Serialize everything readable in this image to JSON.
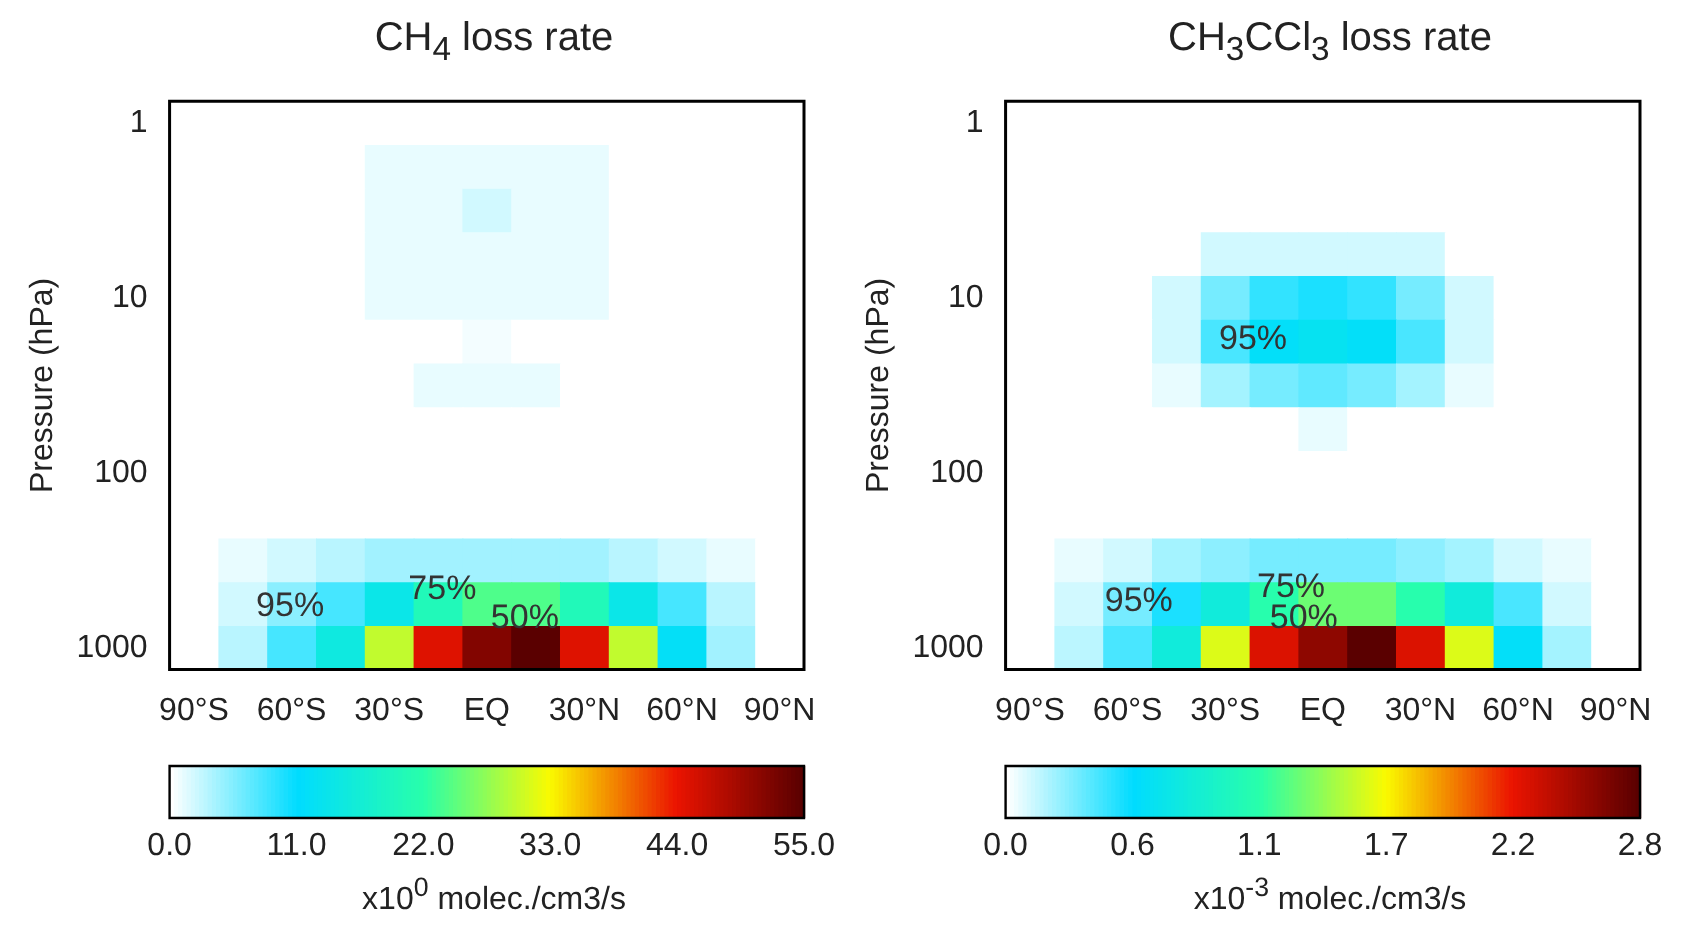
{
  "chart_data": [
    {
      "type": "heatmap",
      "title": "CH$_{4}$ loss rate",
      "ylabel": "Pressure (hPa)",
      "clabel": "x10$^{0}$  molec./cm3/s",
      "categories": [
        "90°S",
        null,
        "60°S",
        null,
        "30°S",
        null,
        "EQ",
        null,
        "30°N",
        null,
        "60°N",
        null,
        "90°N"
      ],
      "y_categories": [
        "1",
        null,
        null,
        null,
        "10",
        null,
        null,
        null,
        "100",
        null,
        null,
        null,
        "1000"
      ],
      "cells": [
        [
          0,
          0,
          0,
          0,
          0,
          0,
          0,
          0,
          0,
          0,
          0,
          0,
          0
        ],
        [
          0,
          0,
          0,
          0,
          1,
          1,
          1,
          1,
          1,
          0,
          0,
          0,
          0
        ],
        [
          0,
          0,
          0,
          0,
          1,
          1,
          2,
          1,
          1,
          0,
          0,
          0,
          0
        ],
        [
          0,
          0,
          0,
          0,
          1,
          1,
          1,
          1,
          1,
          0,
          0,
          0,
          0
        ],
        [
          0,
          0,
          0,
          0,
          1,
          1,
          1,
          1,
          1,
          0,
          0,
          0,
          0
        ],
        [
          0,
          0,
          0,
          0,
          0,
          0,
          0.5,
          0,
          0,
          0,
          0,
          0,
          0
        ],
        [
          0,
          0,
          0,
          0,
          0,
          1,
          1,
          1,
          0,
          0,
          0,
          0,
          0
        ],
        [
          0,
          0,
          0,
          0,
          0,
          0,
          0,
          0,
          0,
          0,
          0,
          0,
          0
        ],
        [
          0,
          0,
          0,
          0,
          0,
          0,
          0,
          0,
          0,
          0,
          0,
          0,
          0
        ],
        [
          0,
          0,
          0,
          0,
          0,
          0,
          0,
          0,
          0,
          0,
          0,
          0,
          0
        ],
        [
          0,
          1,
          2,
          3,
          4,
          4,
          4,
          4,
          4,
          3,
          2,
          1,
          0
        ],
        [
          0,
          2,
          5,
          8,
          14,
          20,
          24,
          24,
          20,
          14,
          8,
          3,
          0
        ],
        [
          0,
          3,
          8,
          15,
          30,
          45,
          52,
          55,
          45,
          30,
          12,
          4,
          0
        ]
      ],
      "clim": [
        0,
        55
      ],
      "cticks": [
        {
          "value": 0,
          "label": "0.0"
        },
        {
          "value": 11,
          "label": "11.0"
        },
        {
          "value": 22,
          "label": "22.0"
        },
        {
          "value": 33,
          "label": "33.0"
        },
        {
          "value": 44,
          "label": "44.0"
        },
        {
          "value": 55,
          "label": "55.0"
        }
      ],
      "annotations": [
        "95%",
        "75%",
        "50%"
      ]
    },
    {
      "type": "heatmap",
      "title": "CH$_{3}$CCl$_{3}$ loss rate",
      "ylabel": "Pressure (hPa)",
      "clabel": "x10$^{-3}$  molec./cm3/s",
      "categories": [
        "90°S",
        null,
        "60°S",
        null,
        "30°S",
        null,
        "EQ",
        null,
        "30°N",
        null,
        "60°N",
        null,
        "90°N"
      ],
      "y_categories": [
        "1",
        null,
        null,
        null,
        "10",
        null,
        null,
        null,
        "100",
        null,
        null,
        null,
        "1000"
      ],
      "cells": [
        [
          0,
          0,
          0,
          0,
          0,
          0,
          0,
          0,
          0,
          0,
          0,
          0,
          0
        ],
        [
          0,
          0,
          0,
          0,
          0,
          0,
          0,
          0,
          0,
          0,
          0,
          0,
          0
        ],
        [
          0,
          0,
          0,
          0,
          0,
          0,
          0,
          0,
          0,
          0,
          0,
          0,
          0
        ],
        [
          0,
          0,
          0,
          0,
          0.1,
          0.1,
          0.1,
          0.1,
          0.1,
          0,
          0,
          0,
          0
        ],
        [
          0,
          0,
          0,
          0.1,
          0.3,
          0.45,
          0.5,
          0.45,
          0.3,
          0.1,
          0,
          0,
          0
        ],
        [
          0,
          0,
          0,
          0.1,
          0.4,
          0.6,
          0.65,
          0.6,
          0.4,
          0.1,
          0,
          0,
          0
        ],
        [
          0,
          0,
          0,
          0.05,
          0.2,
          0.3,
          0.35,
          0.3,
          0.2,
          0.05,
          0,
          0,
          0
        ],
        [
          0,
          0,
          0,
          0,
          0,
          0,
          0.05,
          0,
          0,
          0,
          0,
          0,
          0
        ],
        [
          0,
          0,
          0,
          0,
          0,
          0,
          0,
          0,
          0,
          0,
          0,
          0,
          0
        ],
        [
          0,
          0,
          0,
          0,
          0,
          0,
          0,
          0,
          0,
          0,
          0,
          0,
          0
        ],
        [
          0,
          0.05,
          0.1,
          0.2,
          0.25,
          0.3,
          0.3,
          0.3,
          0.25,
          0.2,
          0.1,
          0.05,
          0
        ],
        [
          0,
          0.1,
          0.3,
          0.5,
          0.8,
          1.1,
          1.3,
          1.3,
          1.1,
          0.8,
          0.4,
          0.1,
          0
        ],
        [
          0,
          0.15,
          0.4,
          0.8,
          1.6,
          2.3,
          2.6,
          2.8,
          2.3,
          1.6,
          0.6,
          0.2,
          0
        ]
      ],
      "clim": [
        0,
        2.8
      ],
      "cticks": [
        {
          "value": 0,
          "label": "0.0"
        },
        {
          "value": 0.56,
          "label": "0.6"
        },
        {
          "value": 1.12,
          "label": "1.1"
        },
        {
          "value": 1.68,
          "label": "1.7"
        },
        {
          "value": 2.24,
          "label": "2.2"
        },
        {
          "value": 2.8,
          "label": "2.8"
        }
      ],
      "annotations": [
        "95%",
        "95%",
        "75%",
        "50%"
      ]
    }
  ]
}
